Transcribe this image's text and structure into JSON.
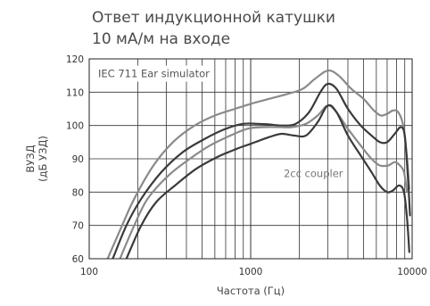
{
  "chart_data": {
    "type": "line",
    "title_line1": "Ответ индукционной катушки",
    "title_line2": "10 мА/м на входе",
    "xlabel": "Частота (Гц)",
    "ylabel_line1": "ВУЗД",
    "ylabel_line2": "(дБ УЗД)",
    "xscale": "log",
    "xlim": [
      100,
      10000
    ],
    "ylim": [
      60,
      120
    ],
    "grid": true,
    "x_ticks": [
      100,
      1000,
      10000
    ],
    "x_tick_labels": [
      "100",
      "1000",
      "10000"
    ],
    "y_ticks": [
      60,
      70,
      80,
      90,
      100,
      110,
      120
    ],
    "annotations": [
      "IEC 711 Ear simulator",
      "2cc coupler"
    ],
    "series": [
      {
        "color": "#8a8a8a",
        "points": [
          [
            130,
            60
          ],
          [
            160,
            70
          ],
          [
            190,
            78
          ],
          [
            250,
            88
          ],
          [
            330,
            95
          ],
          [
            450,
            100
          ],
          [
            600,
            103
          ],
          [
            800,
            105
          ],
          [
            1000,
            106.5
          ],
          [
            1300,
            108
          ],
          [
            1700,
            109.5
          ],
          [
            2100,
            111
          ],
          [
            2500,
            114
          ],
          [
            3000,
            116.5
          ],
          [
            3500,
            115
          ],
          [
            4200,
            111
          ],
          [
            5000,
            108
          ],
          [
            5800,
            104.5
          ],
          [
            6400,
            103
          ],
          [
            7000,
            103.5
          ],
          [
            7600,
            104.5
          ],
          [
            8200,
            104
          ],
          [
            8800,
            100
          ],
          [
            9300,
            90
          ],
          [
            9600,
            81
          ]
        ]
      },
      {
        "color": "#3a3a3a",
        "points": [
          [
            140,
            60
          ],
          [
            170,
            70
          ],
          [
            210,
            78
          ],
          [
            280,
            86
          ],
          [
            380,
            92
          ],
          [
            520,
            96
          ],
          [
            700,
            99
          ],
          [
            900,
            100.5
          ],
          [
            1100,
            100.5
          ],
          [
            1300,
            100.3
          ],
          [
            1600,
            100
          ],
          [
            1900,
            100.5
          ],
          [
            2300,
            104
          ],
          [
            2700,
            110
          ],
          [
            3000,
            112.5
          ],
          [
            3400,
            111
          ],
          [
            4000,
            105
          ],
          [
            4800,
            100
          ],
          [
            5600,
            97
          ],
          [
            6300,
            95
          ],
          [
            7000,
            95
          ],
          [
            7800,
            97.5
          ],
          [
            8500,
            99.5
          ],
          [
            9000,
            97
          ],
          [
            9400,
            85
          ],
          [
            9700,
            73
          ]
        ]
      },
      {
        "color": "#8a8a8a",
        "points": [
          [
            155,
            60
          ],
          [
            190,
            70
          ],
          [
            230,
            78
          ],
          [
            310,
            85
          ],
          [
            420,
            90
          ],
          [
            560,
            94
          ],
          [
            750,
            97
          ],
          [
            950,
            99
          ],
          [
            1200,
            99.5
          ],
          [
            1500,
            99.5
          ],
          [
            1800,
            99.5
          ],
          [
            2200,
            100.5
          ],
          [
            2600,
            103
          ],
          [
            3000,
            106
          ],
          [
            3400,
            104
          ],
          [
            4000,
            99
          ],
          [
            4800,
            94
          ],
          [
            5600,
            90
          ],
          [
            6300,
            88
          ],
          [
            7100,
            88
          ],
          [
            7800,
            89
          ],
          [
            8400,
            88
          ],
          [
            8900,
            86
          ],
          [
            9300,
            80
          ]
        ]
      },
      {
        "color": "#3a3a3a",
        "points": [
          [
            170,
            60
          ],
          [
            210,
            70
          ],
          [
            260,
            77
          ],
          [
            340,
            82
          ],
          [
            460,
            87
          ],
          [
            620,
            90.5
          ],
          [
            820,
            93
          ],
          [
            1000,
            94.5
          ],
          [
            1300,
            96.5
          ],
          [
            1550,
            97.5
          ],
          [
            1850,
            97
          ],
          [
            2200,
            97
          ],
          [
            2600,
            101
          ],
          [
            3000,
            106
          ],
          [
            3400,
            104
          ],
          [
            4000,
            97
          ],
          [
            4800,
            91
          ],
          [
            5600,
            86
          ],
          [
            6300,
            82
          ],
          [
            7000,
            80
          ],
          [
            7600,
            80.5
          ],
          [
            8300,
            82
          ],
          [
            8900,
            80
          ],
          [
            9300,
            72
          ],
          [
            9600,
            62
          ]
        ]
      }
    ]
  }
}
